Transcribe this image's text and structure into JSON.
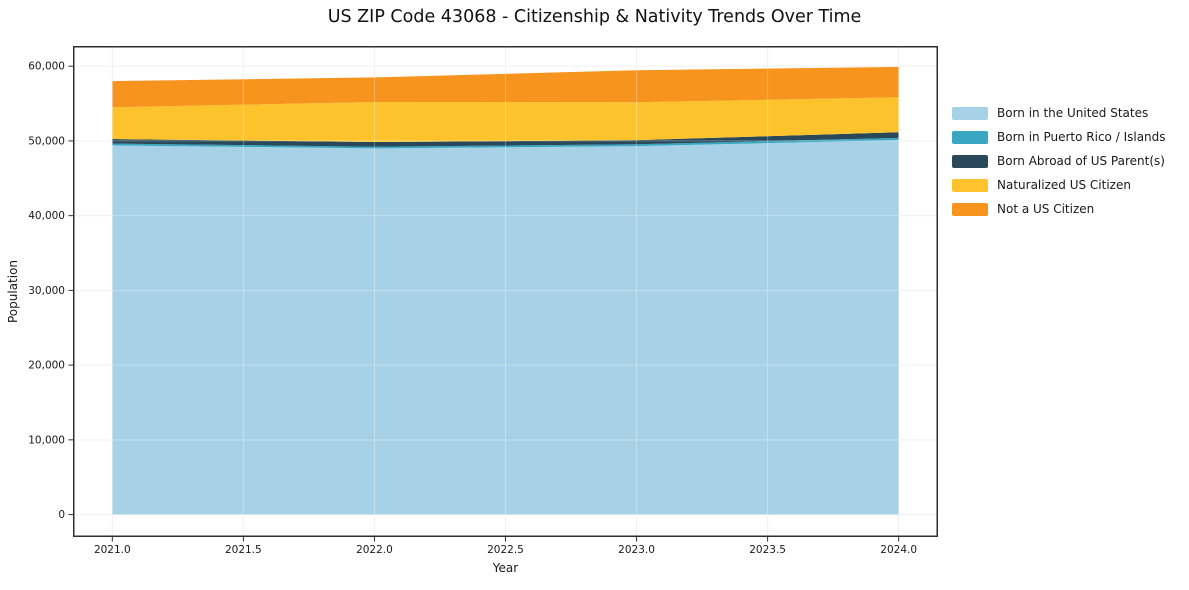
{
  "title": "US ZIP Code 43068 - Citizenship & Nativity Trends Over Time",
  "chart_data": {
    "type": "area",
    "stacked": true,
    "title": "US ZIP Code 43068 - Citizenship & Nativity Trends Over Time",
    "xlabel": "Year",
    "ylabel": "Population",
    "x": [
      2021,
      2022,
      2023,
      2024
    ],
    "series": [
      {
        "name": "Born in the United States",
        "color": "#a6d1e7",
        "values": [
          49400,
          49000,
          49300,
          50100
        ]
      },
      {
        "name": "Born in Puerto Rico / Islands",
        "color": "#39a6c2",
        "values": [
          250,
          220,
          250,
          300
        ]
      },
      {
        "name": "Born Abroad of US Parent(s)",
        "color": "#29495b",
        "values": [
          600,
          630,
          550,
          760
        ]
      },
      {
        "name": "Naturalized US Citizen",
        "color": "#fcc32c",
        "values": [
          4250,
          5350,
          5080,
          4680
        ]
      },
      {
        "name": "Not a US Citizen",
        "color": "#f7941e",
        "values": [
          3500,
          3300,
          4270,
          4060
        ]
      }
    ],
    "stack_totals": [
      58000,
      58500,
      59450,
      59900
    ],
    "x_ticks": [
      2021.0,
      2021.5,
      2022.0,
      2022.5,
      2023.0,
      2023.5,
      2024.0
    ],
    "x_tick_labels": [
      "2021.0",
      "2021.5",
      "2022.0",
      "2022.5",
      "2023.0",
      "2023.5",
      "2024.0"
    ],
    "y_ticks": [
      0,
      10000,
      20000,
      30000,
      40000,
      50000,
      60000
    ],
    "y_tick_labels": [
      "0",
      "10,000",
      "20,000",
      "30,000",
      "40,000",
      "50,000",
      "60,000"
    ],
    "xlim": [
      2020.85,
      2024.15
    ],
    "ylim": [
      -3000,
      62700
    ],
    "grid": true,
    "legend_position": "right-outside"
  },
  "style_colors": {
    "grid_under": "#ebebeb",
    "grid_over": "rgba(255,255,255,0.30)",
    "spine": "#2e2e2e",
    "tick": "#2e2e2e",
    "tick_label": "#1a1a1a",
    "axis_label": "#1a1a1a"
  }
}
